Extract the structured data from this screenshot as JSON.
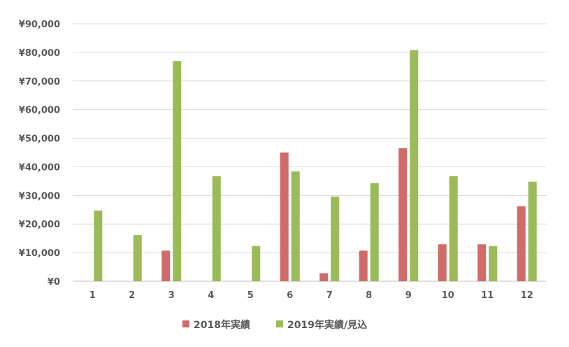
{
  "colors": {
    "series_2018": "#D06B69",
    "series_2019": "#9BBB59",
    "grid": "#D9D9D9",
    "axis": "#BFBFBF",
    "text": "#595959"
  },
  "legend": {
    "placement": "bottom"
  },
  "chart_data": {
    "type": "bar",
    "title": "",
    "xlabel": "",
    "ylabel": "",
    "ylim": [
      0,
      90000
    ],
    "yticks": [
      {
        "value": 0,
        "label": "¥0"
      },
      {
        "value": 10000,
        "label": "¥10,000"
      },
      {
        "value": 20000,
        "label": "¥20,000"
      },
      {
        "value": 30000,
        "label": "¥30,000"
      },
      {
        "value": 40000,
        "label": "¥40,000"
      },
      {
        "value": 50000,
        "label": "¥50,000"
      },
      {
        "value": 60000,
        "label": "¥60,000"
      },
      {
        "value": 70000,
        "label": "¥70,000"
      },
      {
        "value": 80000,
        "label": "¥80,000"
      },
      {
        "value": 90000,
        "label": "¥90,000"
      }
    ],
    "grid": true,
    "categories": [
      "1",
      "2",
      "3",
      "4",
      "5",
      "6",
      "7",
      "8",
      "9",
      "10",
      "11",
      "12"
    ],
    "series": [
      {
        "name": "2018年実績",
        "color_key": "series_2018",
        "values": [
          0,
          0,
          10700,
          0,
          0,
          45000,
          2800,
          10700,
          46500,
          12900,
          12900,
          26200
        ]
      },
      {
        "name": "2019年実績/見込",
        "color_key": "series_2019",
        "values": [
          24700,
          16100,
          77000,
          36700,
          12300,
          38400,
          29600,
          34300,
          80800,
          36700,
          12300,
          34800
        ]
      }
    ]
  }
}
